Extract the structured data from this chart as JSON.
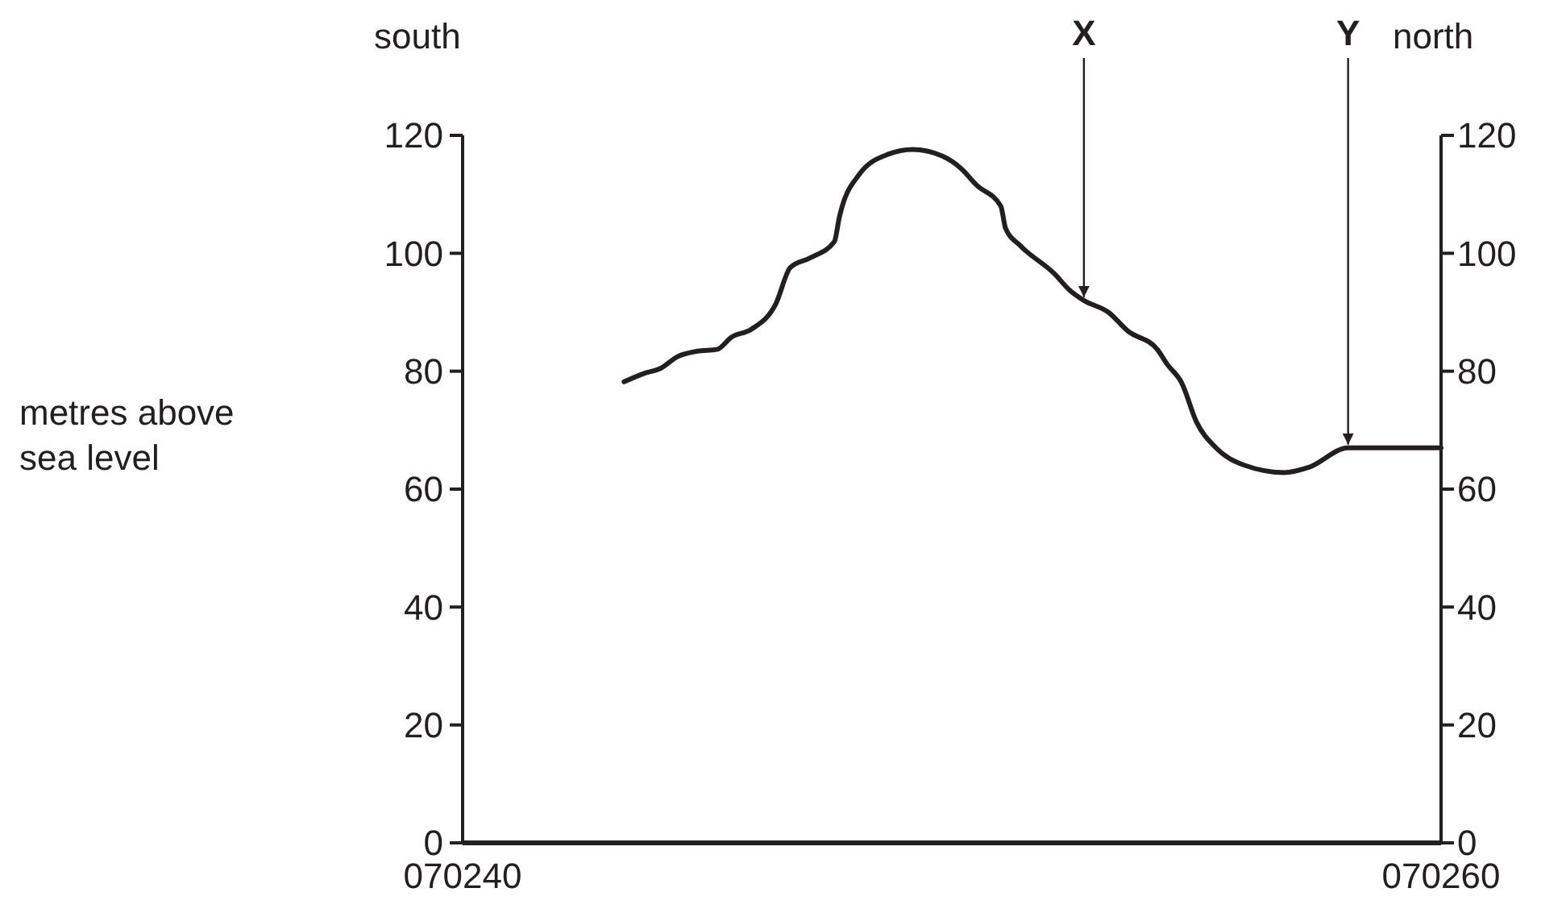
{
  "chart_data": {
    "type": "line",
    "ylabel": "metres above sea level",
    "x": [
      70243.3,
      70243.7,
      70244.05,
      70244.4,
      70244.8,
      70245.2,
      70245.5,
      70245.9,
      70246.4,
      70246.7,
      70247.1,
      70247.6,
      70247.7,
      70248.1,
      70248.7,
      70249.2,
      70249.8,
      70250.2,
      70250.5,
      70251,
      70251.1,
      70251.4,
      70252.1,
      70252.4,
      70252.7,
      70253.2,
      70253.6,
      70254.2,
      70254.4,
      70254.7,
      70255,
      70255.4,
      70256,
      70256.8,
      70257.3,
      70258.1,
      70260
    ],
    "series": [
      {
        "color": "#231f20",
        "values": [
          78.2,
          79.6,
          80.5,
          82.5,
          83.4,
          83.7,
          85.8,
          87.1,
          91.4,
          97.6,
          99.2,
          102,
          106.1,
          113.3,
          116.8,
          117.6,
          116.5,
          114.3,
          111.6,
          108,
          104.2,
          101.3,
          96.5,
          93.8,
          92,
          90,
          86.8,
          83.7,
          81.2,
          78,
          71.4,
          67,
          64,
          62.8,
          63.7,
          67,
          67
        ]
      }
    ],
    "xlim": [
      70240,
      70260
    ],
    "xticks": [
      {
        "value": 70240,
        "label": "070240"
      },
      {
        "value": 70260,
        "label": "070260"
      }
    ],
    "ylim": [
      0,
      120
    ],
    "yticks": [
      0,
      20,
      40,
      60,
      80,
      100,
      120
    ],
    "y2lim": [
      0,
      120
    ],
    "y2ticks": [
      0,
      20,
      40,
      60,
      80,
      100,
      120
    ],
    "marker": "none",
    "line_style": "solid",
    "annotations": [
      {
        "text": "X",
        "x": 70252.7,
        "y": 92
      },
      {
        "text": "Y",
        "x": 70258.1,
        "y": 67
      },
      "south",
      "north"
    ]
  }
}
